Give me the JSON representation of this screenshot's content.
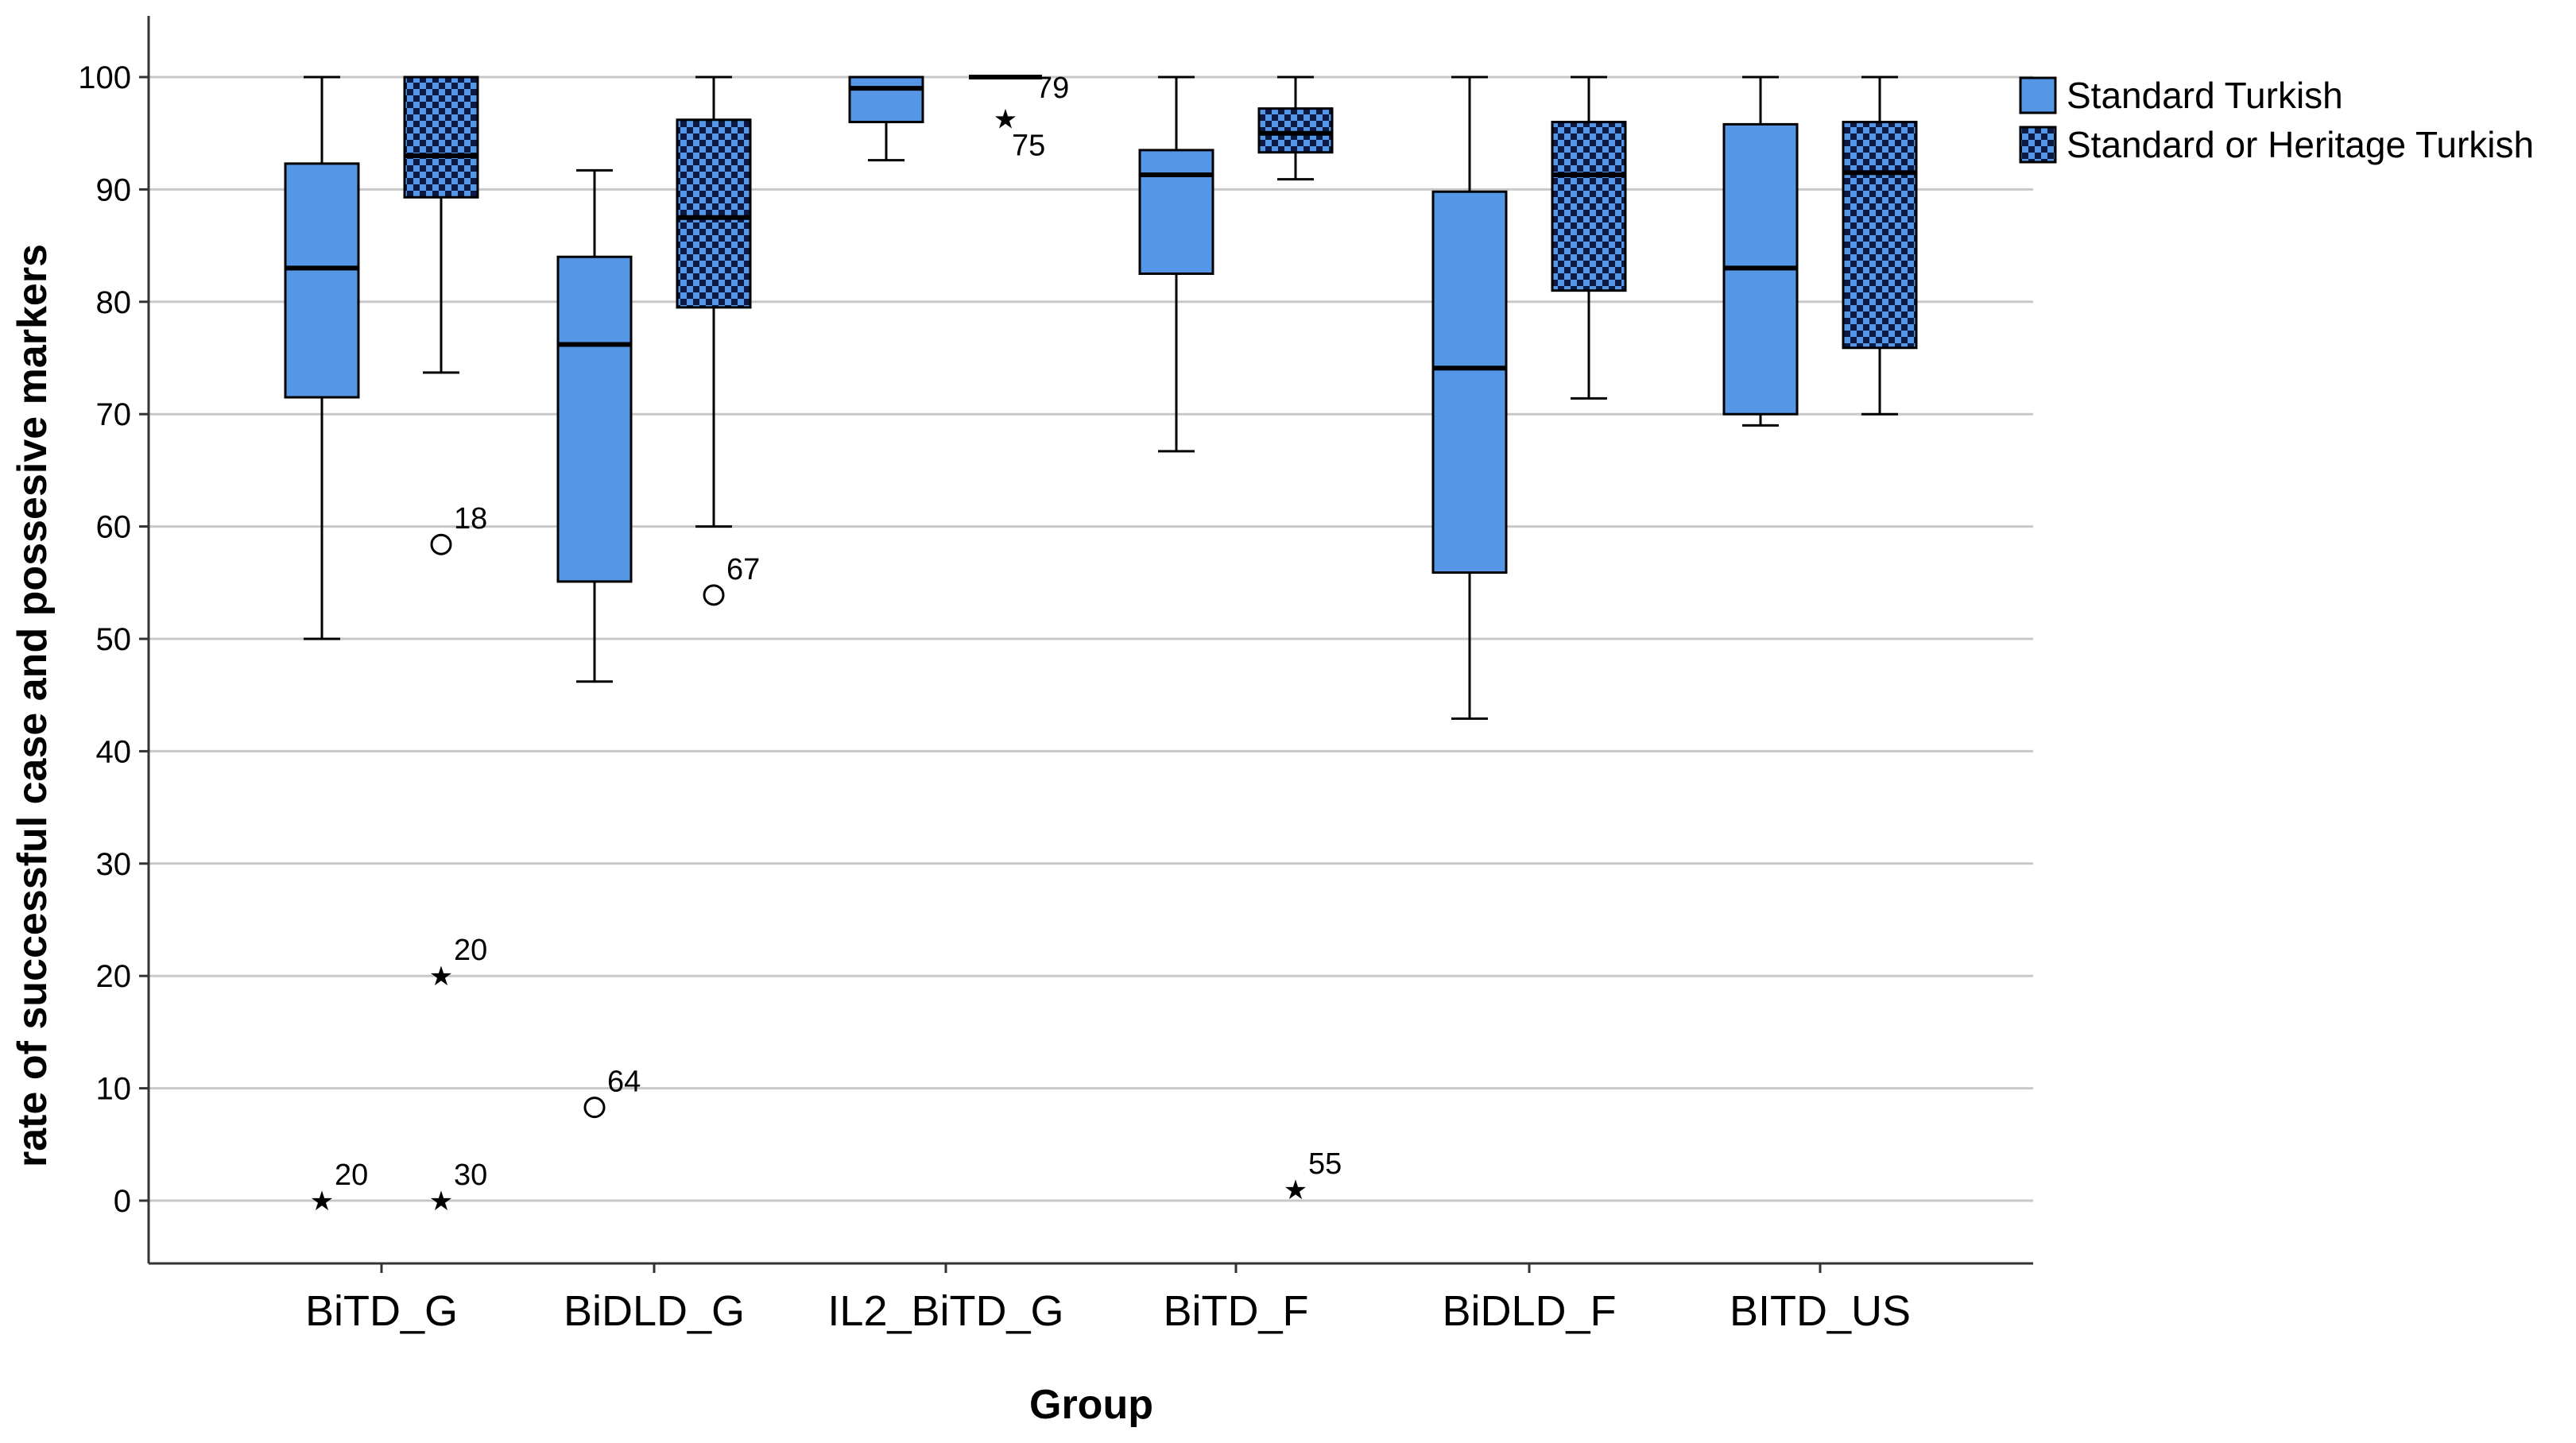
{
  "chart_data": {
    "type": "boxplot",
    "xlabel": "Group",
    "ylabel": "rate of successful case and possesive markers",
    "ylim": [
      -5,
      105
    ],
    "yticks": [
      0,
      10,
      20,
      30,
      40,
      50,
      60,
      70,
      80,
      90,
      100
    ],
    "grid": true,
    "legend_position": "top-right",
    "categories": [
      "BiTD_G",
      "BiDLD_G",
      "IL2_BiTD_G",
      "BiTD_F",
      "BiDLD_F",
      "BITD_US"
    ],
    "colors": {
      "box_fill": "#5596e6",
      "box_stroke": "#000000",
      "grid": "#c8c8c8",
      "checker_dark": "#0a1a44"
    },
    "series": [
      {
        "name": "Standard Turkish",
        "pattern": "solid",
        "boxes": [
          {
            "whisker_low": 50,
            "q1": 71.5,
            "median": 83,
            "q3": 92.3,
            "whisker_high": 100,
            "outliers": [
              {
                "value": 0,
                "label": "20",
                "marker": "star"
              }
            ]
          },
          {
            "whisker_low": 46.2,
            "q1": 55.1,
            "median": 76.2,
            "q3": 84,
            "whisker_high": 91.7,
            "outliers": [
              {
                "value": 8.3,
                "label": "64",
                "marker": "circle"
              }
            ]
          },
          {
            "whisker_low": 92.6,
            "q1": 96,
            "median": 99,
            "q3": 100,
            "whisker_high": 100,
            "outliers": []
          },
          {
            "whisker_low": 66.7,
            "q1": 82.5,
            "median": 91.3,
            "q3": 93.5,
            "whisker_high": 100,
            "outliers": []
          },
          {
            "whisker_low": 42.9,
            "q1": 55.9,
            "median": 74.1,
            "q3": 89.8,
            "whisker_high": 100,
            "outliers": []
          },
          {
            "whisker_low": 69,
            "q1": 70,
            "median": 83,
            "q3": 95.8,
            "whisker_high": 100,
            "outliers": []
          }
        ]
      },
      {
        "name": "Standard or Heritage Turkish",
        "pattern": "checkered",
        "boxes": [
          {
            "whisker_low": 73.7,
            "q1": 89.3,
            "median": 93,
            "q3": 100,
            "whisker_high": 100,
            "outliers": [
              {
                "value": 58.4,
                "label": "18",
                "marker": "circle"
              },
              {
                "value": 20,
                "label": "20",
                "marker": "star"
              },
              {
                "value": 0,
                "label": "30",
                "marker": "star"
              }
            ]
          },
          {
            "whisker_low": 60,
            "q1": 79.5,
            "median": 87.5,
            "q3": 96.2,
            "whisker_high": 100,
            "outliers": [
              {
                "value": 53.9,
                "label": "67",
                "marker": "circle"
              }
            ]
          },
          {
            "whisker_low": 100,
            "q1": 100,
            "median": 100,
            "q3": 100,
            "whisker_high": 100,
            "outliers": [
              {
                "value": 100,
                "label": "79",
                "marker": "none"
              },
              {
                "value": 96.3,
                "label": "75",
                "marker": "star"
              }
            ]
          },
          {
            "whisker_low": 90.9,
            "q1": 93.3,
            "median": 95,
            "q3": 97.2,
            "whisker_high": 100,
            "outliers": [
              {
                "value": 1,
                "label": "55",
                "marker": "star"
              }
            ]
          },
          {
            "whisker_low": 71.4,
            "q1": 81,
            "median": 91.3,
            "q3": 96,
            "whisker_high": 100,
            "outliers": []
          },
          {
            "whisker_low": 70,
            "q1": 75.9,
            "median": 91.5,
            "q3": 96,
            "whisker_high": 100,
            "outliers": []
          }
        ]
      }
    ]
  }
}
